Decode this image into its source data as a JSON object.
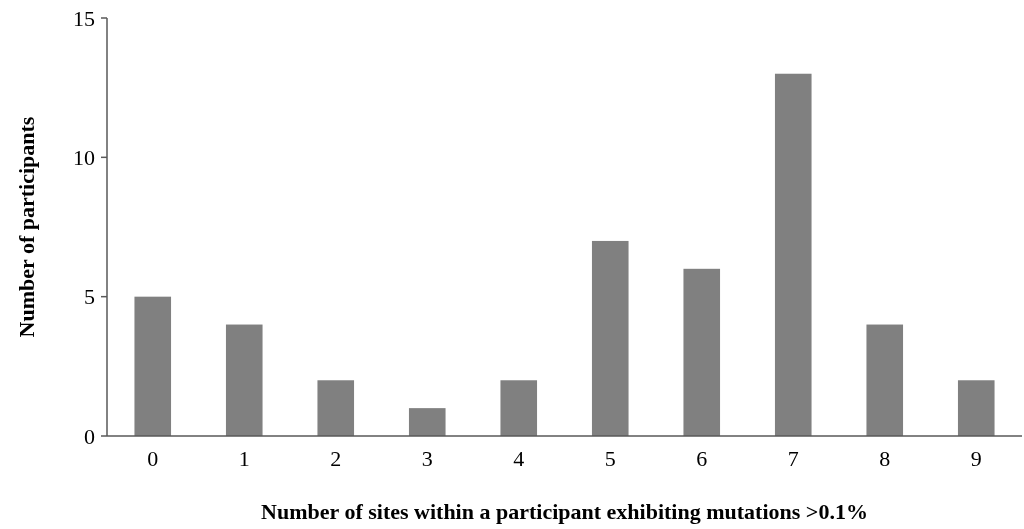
{
  "chart_data": {
    "type": "bar",
    "categories": [
      "0",
      "1",
      "2",
      "3",
      "4",
      "5",
      "6",
      "7",
      "8",
      "9"
    ],
    "values": [
      5,
      4,
      2,
      1,
      2,
      7,
      6,
      13,
      4,
      2
    ],
    "color": "#808080",
    "xlabel": "Number of sites within a participant exhibiting mutations >0.1%",
    "ylabel": "Number of participants",
    "ylim": [
      0,
      15
    ],
    "yticks": [
      0,
      5,
      10,
      15
    ],
    "grid": false
  }
}
